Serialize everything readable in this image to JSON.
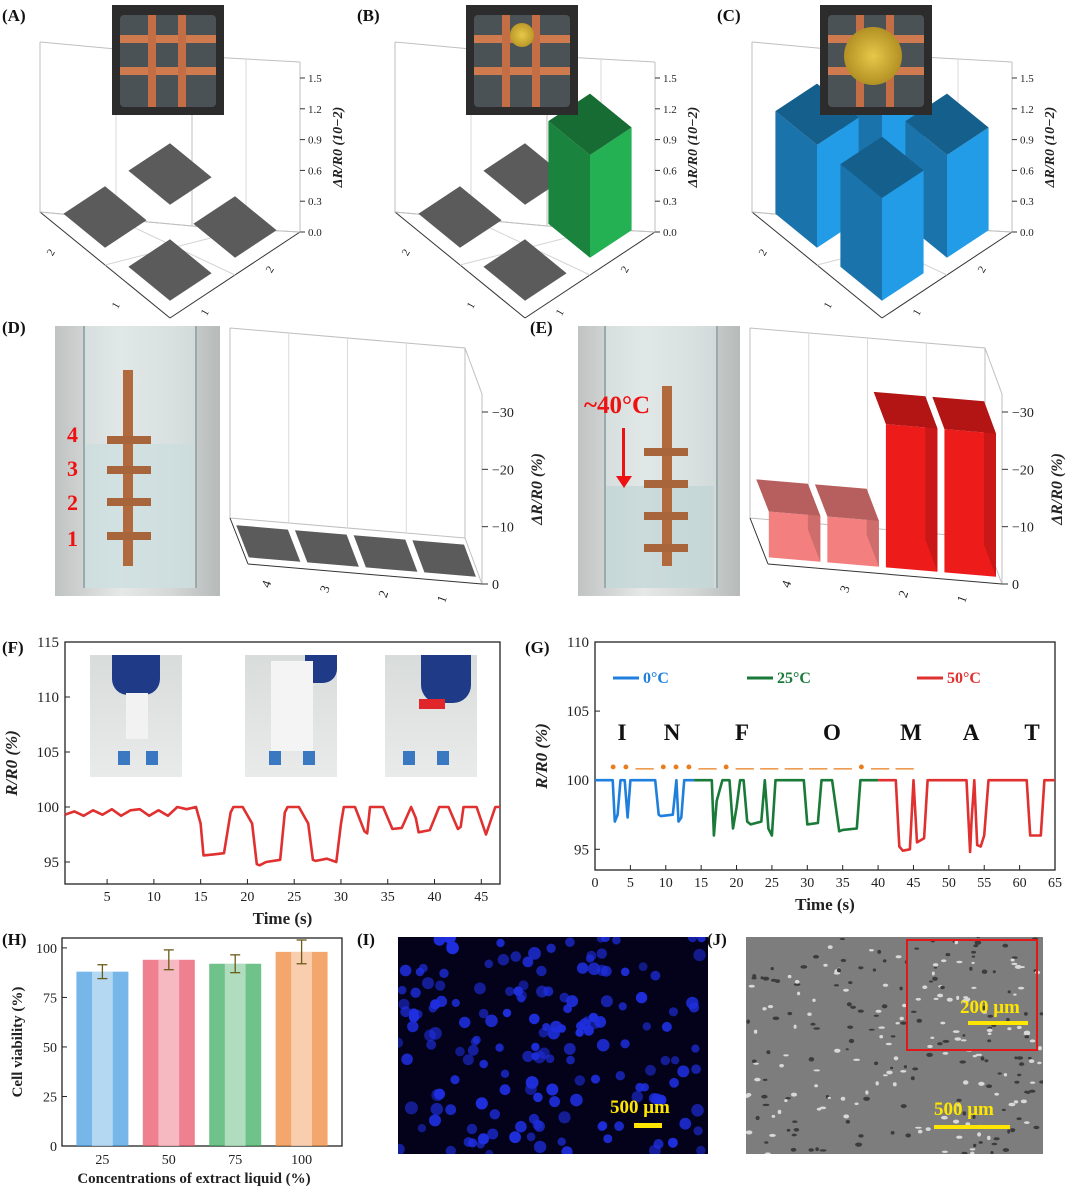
{
  "panels": {
    "A": {
      "label": "(A)"
    },
    "B": {
      "label": "(B)"
    },
    "C": {
      "label": "(C)"
    },
    "D": {
      "label": "(D)"
    },
    "E": {
      "label": "(E)"
    },
    "F": {
      "label": "(F)"
    },
    "G": {
      "label": "(G)"
    },
    "H": {
      "label": "(H)"
    },
    "I": {
      "label": "(I)"
    },
    "J": {
      "label": "(J)"
    }
  },
  "abc_axis": {
    "zlabel": "ΔR/R0 (10−2)",
    "zticks": [
      "1.5",
      "1.2",
      "0.9",
      "0.6",
      "0.3",
      "0.0"
    ],
    "xticks": [
      "2",
      "1"
    ],
    "yticks": [
      "2",
      "1"
    ]
  },
  "de_axis": {
    "zlabel": "ΔR/R0 (%)",
    "zticks": [
      "−30",
      "−20",
      "−10",
      "0"
    ],
    "xticks": [
      "4",
      "3",
      "2",
      "1"
    ]
  },
  "photo_text": {
    "beaker_marks": [
      "4",
      "3",
      "2",
      "1"
    ],
    "temperature": "~40°C",
    "scale_i": "500 μm",
    "scale_j_inset": "200 μm",
    "scale_j": "500 μm"
  },
  "chart_data": [
    {
      "id": "A",
      "type": "bar3d",
      "categories": [
        "1-1",
        "1-2",
        "2-1",
        "2-2"
      ],
      "values": [
        0,
        0,
        0,
        0
      ],
      "zlabel": "ΔR/R0 (10−2)",
      "zlim": [
        0,
        1.5
      ]
    },
    {
      "id": "B",
      "type": "bar3d",
      "categories": [
        "1-1",
        "1-2",
        "2-1",
        "2-2"
      ],
      "values": [
        0,
        0,
        0,
        1.0
      ],
      "colors": [
        "#5b5b5b",
        "#5b5b5b",
        "#5b5b5b",
        "#1f9a48"
      ],
      "zlabel": "ΔR/R0 (10−2)",
      "zlim": [
        0,
        1.5
      ]
    },
    {
      "id": "C",
      "type": "bar3d",
      "categories": [
        "1-1",
        "1-2",
        "2-1",
        "2-2"
      ],
      "values": [
        1.0,
        1.0,
        1.0,
        1.0
      ],
      "colors": [
        "#1e88c9"
      ],
      "zlabel": "ΔR/R0 (10−2)",
      "zlim": [
        0,
        1.5
      ]
    },
    {
      "id": "D",
      "type": "bar3d",
      "categories": [
        "4",
        "3",
        "2",
        "1"
      ],
      "values": [
        0,
        0,
        0,
        0
      ],
      "zlabel": "ΔR/R0 (%)",
      "zlim": [
        0,
        -30
      ]
    },
    {
      "id": "E",
      "type": "bar3d",
      "categories": [
        "4",
        "3",
        "2",
        "1"
      ],
      "values": [
        -8,
        -8,
        -25,
        -25
      ],
      "colors": [
        "#f47f7f",
        "#f47f7f",
        "#ee1b1b",
        "#ee1b1b"
      ],
      "zlabel": "ΔR/R0 (%)",
      "zlim": [
        0,
        -30
      ]
    },
    {
      "id": "F",
      "type": "line",
      "xlabel": "Time  (s)",
      "ylabel": "R/R0  (%)",
      "xlim": [
        0.5,
        47
      ],
      "ylim": [
        93,
        115
      ],
      "xticks": [
        5,
        10,
        15,
        20,
        25,
        30,
        35,
        40,
        45
      ],
      "yticks": [
        95,
        100,
        105,
        110,
        115
      ],
      "grid": false,
      "series": [
        {
          "color": "#e03030",
          "x": [
            0.5,
            1.5,
            2.5,
            3.5,
            4.5,
            5.5,
            6.5,
            7.5,
            8.5,
            9.5,
            10.5,
            11.5,
            12.5,
            13.5,
            14.5,
            15.0,
            15.3,
            16.5,
            17.5,
            18.2,
            18.5,
            19.5,
            20.5,
            21.0,
            21.3,
            22.0,
            23.5,
            24.0,
            24.3,
            25.5,
            26.5,
            27.0,
            27.3,
            28.5,
            29.5,
            30.0,
            30.3,
            31.5,
            32.5,
            32.8,
            33.1,
            34.5,
            35.5,
            36.5,
            37.5,
            38.0,
            38.3,
            39.5,
            40.5,
            41.5,
            42.5,
            42.8,
            43.1,
            44.5,
            45.5,
            46.5,
            47.0
          ],
          "y": [
            99.3,
            99.6,
            99.2,
            99.7,
            99.3,
            99.8,
            99.2,
            99.7,
            99.8,
            99.2,
            99.7,
            99.2,
            100.0,
            99.8,
            100.0,
            98.5,
            95.6,
            95.7,
            95.8,
            99.5,
            100.0,
            100.0,
            98.5,
            94.8,
            94.7,
            95.0,
            95.2,
            99.5,
            100.0,
            100.0,
            98.5,
            95.2,
            95.1,
            95.3,
            95.0,
            98.5,
            100.0,
            100.0,
            97.8,
            97.6,
            100.0,
            100.0,
            98.0,
            98.1,
            100.0,
            99.0,
            97.7,
            97.9,
            100.0,
            100.0,
            98.0,
            98.2,
            100.0,
            100.0,
            97.5,
            100.0,
            100.0
          ]
        }
      ]
    },
    {
      "id": "G",
      "type": "line",
      "xlabel": "Time  (s)",
      "ylabel": "R/R0  (%)",
      "xlim": [
        0,
        65
      ],
      "ylim": [
        93.5,
        110
      ],
      "xticks": [
        0,
        5,
        10,
        15,
        20,
        25,
        30,
        35,
        40,
        45,
        50,
        55,
        60,
        65
      ],
      "yticks": [
        95,
        100,
        105,
        110
      ],
      "grid": false,
      "letters": [
        "I",
        "N",
        "F",
        "O",
        "M",
        "A",
        "T"
      ],
      "morse_marks": "• •   — •   • • — •   — — —   — —   • —   —",
      "series": [
        {
          "name": "0°C",
          "color": "#1f7fdc",
          "x": [
            0,
            2.5,
            2.8,
            3.2,
            3.6,
            4.2,
            4.6,
            5.0,
            5.6,
            8.5,
            9.0,
            9.3,
            11.0,
            11.5,
            11.8,
            12.2,
            12.6,
            14.0
          ],
          "y": [
            100,
            100,
            97.0,
            97.5,
            100,
            100,
            97.3,
            100,
            100,
            100,
            97.5,
            97.4,
            97.5,
            100,
            97.0,
            97.3,
            100,
            100
          ]
        },
        {
          "name": "25°C",
          "color": "#1a7a38",
          "x": [
            14.0,
            16.5,
            16.8,
            17.2,
            18.0,
            19.0,
            19.5,
            20.0,
            20.5,
            21.0,
            21.5,
            22.0,
            23.5,
            24.0,
            24.5,
            25.0,
            25.5,
            26.0,
            29.5,
            30.0,
            31.5,
            32.0,
            32.5,
            33.5,
            34.5,
            35.0,
            37.0,
            37.5,
            38.0,
            40.0
          ],
          "y": [
            100,
            100,
            96.0,
            98.5,
            100,
            100,
            96.5,
            98.0,
            100,
            100,
            97.0,
            96.8,
            97.0,
            100,
            96.5,
            96.0,
            100,
            100,
            100,
            96.8,
            96.9,
            100,
            100,
            100,
            96.3,
            96.4,
            96.5,
            100,
            100,
            100
          ]
        },
        {
          "name": "50°C",
          "color": "#e03030",
          "x": [
            40.0,
            42.5,
            43.0,
            43.5,
            44.5,
            45.0,
            45.5,
            46.5,
            47.0,
            52.5,
            53.0,
            53.2,
            53.6,
            54.0,
            54.5,
            55.0,
            55.6,
            61.0,
            61.5,
            63.0,
            63.5,
            65.0
          ],
          "y": [
            100,
            100,
            95.2,
            94.9,
            95.0,
            100,
            95.5,
            95.8,
            100,
            100,
            94.8,
            97.0,
            100,
            95.3,
            95.2,
            96.0,
            100,
            100,
            96.0,
            96.0,
            100,
            100
          ]
        }
      ]
    },
    {
      "id": "H",
      "type": "bar",
      "xlabel": "Concentrations of extract liquid  (%)",
      "ylabel": "Cell viability  (%)",
      "categories": [
        "25",
        "50",
        "75",
        "100"
      ],
      "values": [
        88,
        94,
        92,
        98
      ],
      "errors": [
        3.5,
        5.0,
        4.5,
        6.0
      ],
      "colors": [
        "#4a9ee0",
        "#e8566a",
        "#3fae62",
        "#f08a3c"
      ],
      "ylim": [
        0,
        105
      ],
      "yticks": [
        0,
        25,
        50,
        75,
        100
      ]
    }
  ]
}
